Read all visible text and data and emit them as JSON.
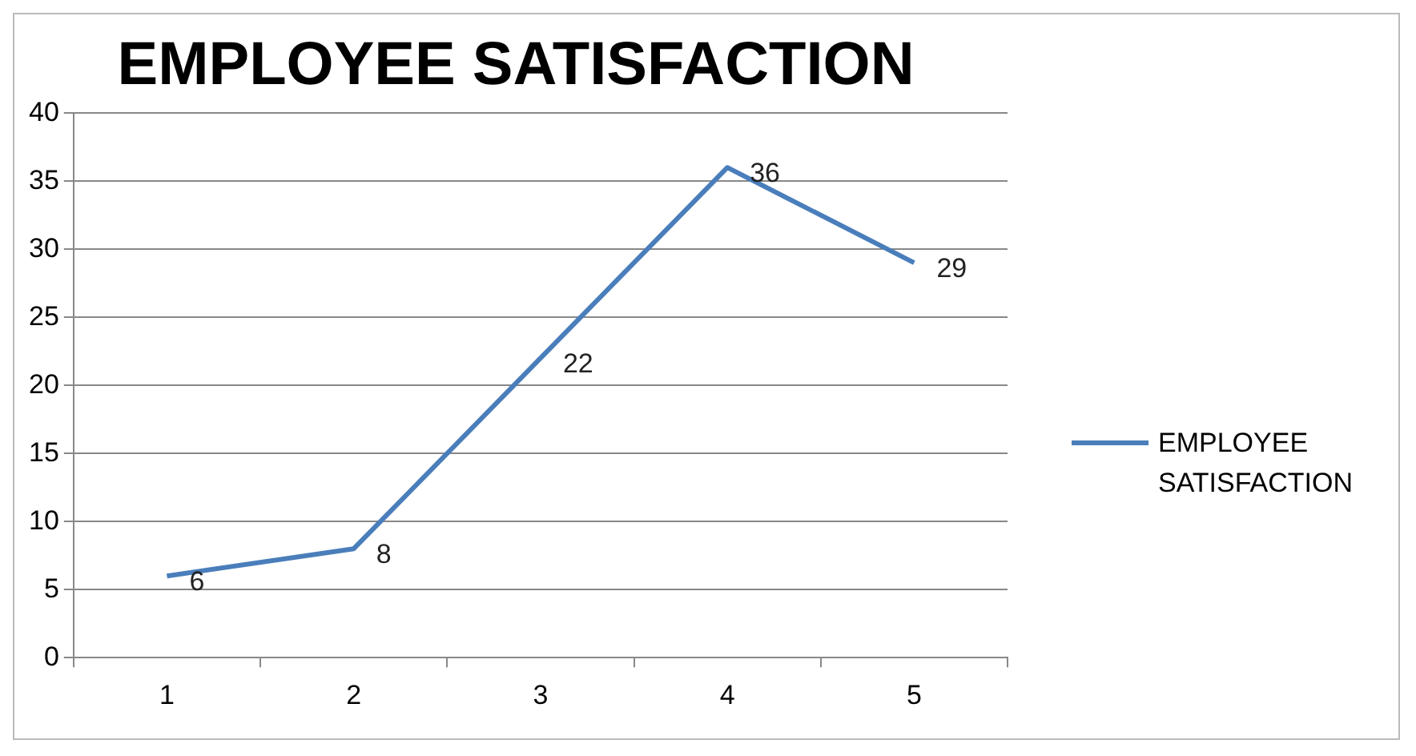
{
  "chart_data": {
    "type": "line",
    "title": "EMPLOYEE SATISFACTION",
    "categories": [
      "1",
      "2",
      "3",
      "4",
      "5"
    ],
    "series": [
      {
        "name": "EMPLOYEE SATISFACTION",
        "color": "#4a7ebb",
        "values": [
          6,
          8,
          22,
          36,
          29
        ]
      }
    ],
    "ylim": [
      0,
      40
    ],
    "yticks": [
      0,
      5,
      10,
      15,
      20,
      25,
      30,
      35,
      40
    ],
    "grid": "y",
    "legend": "right",
    "data_labels": true,
    "marker": "none",
    "line_style": "solid"
  }
}
